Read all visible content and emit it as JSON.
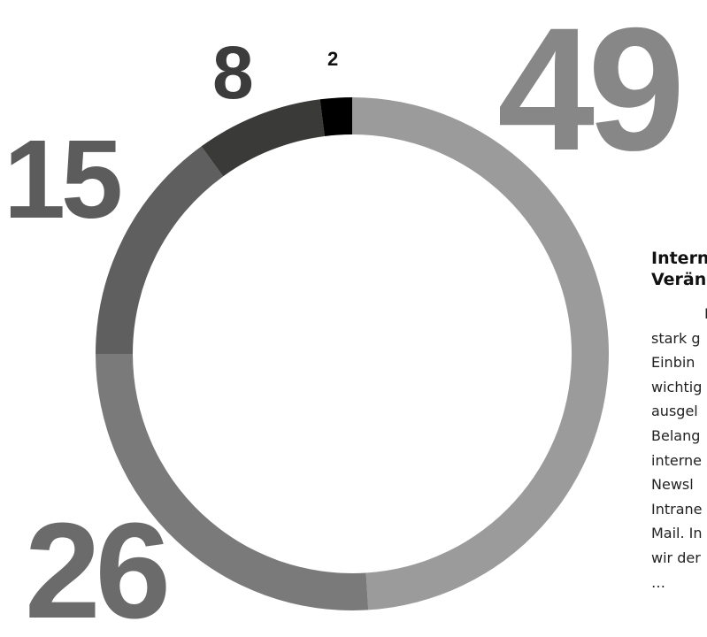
{
  "chart_data": {
    "type": "pie",
    "variant": "donut",
    "start": "top, clockwise",
    "slices": [
      {
        "label": "49",
        "value": 49,
        "color": "#9b9b9b"
      },
      {
        "label": "26",
        "value": 26,
        "color": "#7a7a7a"
      },
      {
        "label": "15",
        "value": 15,
        "color": "#5f5f5f"
      },
      {
        "label": "8",
        "value": 8,
        "color": "#3a3a38"
      },
      {
        "label": "2",
        "value": 2,
        "color": "#000000"
      }
    ],
    "title": "",
    "legend": "none"
  },
  "article": {
    "title_lines": [
      "Intern",
      "Verän"
    ],
    "body_lines": [
      "I",
      "stark g",
      "Einbin",
      "wichtig",
      "ausgel",
      "Belang",
      "interne",
      "Newsl",
      "Intrane",
      "Mail. In",
      "wir der",
      "…"
    ]
  }
}
